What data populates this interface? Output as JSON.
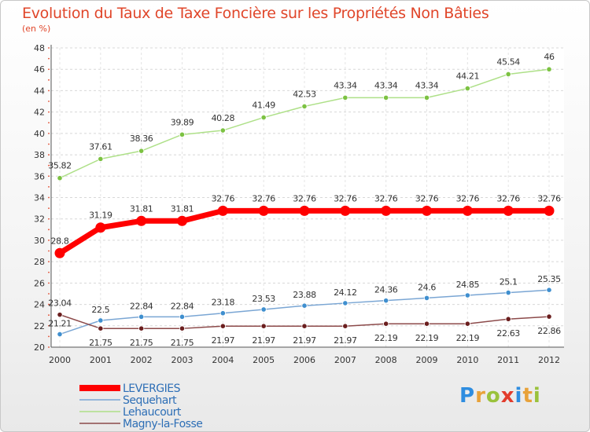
{
  "title": "Evolution du Taux de Taxe Foncière sur les Propriétés Non Bâties",
  "unit": "(en %)",
  "logo": {
    "letters": [
      "P",
      "r",
      "o",
      "x",
      "i",
      "t",
      "i"
    ],
    "colors": [
      "#2e8de0",
      "#e8a23a",
      "#9ac23c",
      "#e23c2c",
      "#2e8de0",
      "#e8a23a",
      "#9ac23c"
    ]
  },
  "chart_data": {
    "type": "line",
    "x": [
      "2000",
      "2001",
      "2002",
      "2003",
      "2004",
      "2005",
      "2006",
      "2007",
      "2008",
      "2009",
      "2010",
      "2011",
      "2012"
    ],
    "ylim": [
      20,
      48
    ],
    "yticks": [
      20,
      22,
      24,
      26,
      28,
      30,
      32,
      34,
      36,
      38,
      40,
      42,
      44,
      46,
      48
    ],
    "grid": true,
    "legend": "bottom-left",
    "series": [
      {
        "name": "LEVERGIES",
        "color": "#ff0000",
        "marker": "#ff0000",
        "width": 7,
        "values": [
          28.8,
          31.19,
          31.81,
          31.81,
          32.76,
          32.76,
          32.76,
          32.76,
          32.76,
          32.76,
          32.76,
          32.76,
          32.76
        ],
        "labels": [
          "28.8",
          "31.19",
          "31.81",
          "31.81",
          "32.76",
          "32.76",
          "32.76",
          "32.76",
          "32.76",
          "32.76",
          "32.76",
          "32.76",
          "32.76"
        ]
      },
      {
        "name": "Sequehart",
        "color": "#7aa6d4",
        "marker": "#3f8fcf",
        "width": 1.5,
        "values": [
          21.21,
          22.5,
          22.84,
          22.84,
          23.18,
          23.53,
          23.88,
          24.12,
          24.36,
          24.6,
          24.85,
          25.1,
          25.35
        ],
        "labels": [
          "21.21",
          "22.5",
          "22.84",
          "22.84",
          "23.18",
          "23.53",
          "23.88",
          "24.12",
          "24.36",
          "24.6",
          "24.85",
          "25.1",
          "25.35"
        ]
      },
      {
        "name": "Lehaucourt",
        "color": "#aee088",
        "marker": "#7cc242",
        "width": 1.5,
        "values": [
          35.82,
          37.61,
          38.36,
          39.89,
          40.28,
          41.49,
          42.53,
          43.34,
          43.34,
          43.34,
          44.21,
          45.54,
          46
        ],
        "labels": [
          "35.82",
          "37.61",
          "38.36",
          "39.89",
          "40.28",
          "41.49",
          "42.53",
          "43.34",
          "43.34",
          "43.34",
          "44.21",
          "45.54",
          "46"
        ]
      },
      {
        "name": "Magny-la-Fosse",
        "color": "#8c4a4a",
        "marker": "#6b1e1e",
        "width": 1.5,
        "values": [
          23.04,
          21.75,
          21.75,
          21.75,
          21.97,
          21.97,
          21.97,
          21.97,
          22.19,
          22.19,
          22.19,
          22.63,
          22.86
        ],
        "labels": [
          "23.04",
          "21.75",
          "21.75",
          "21.75",
          "21.97",
          "21.97",
          "21.97",
          "21.97",
          "22.19",
          "22.19",
          "22.19",
          "22.63",
          "22.86"
        ]
      }
    ]
  }
}
